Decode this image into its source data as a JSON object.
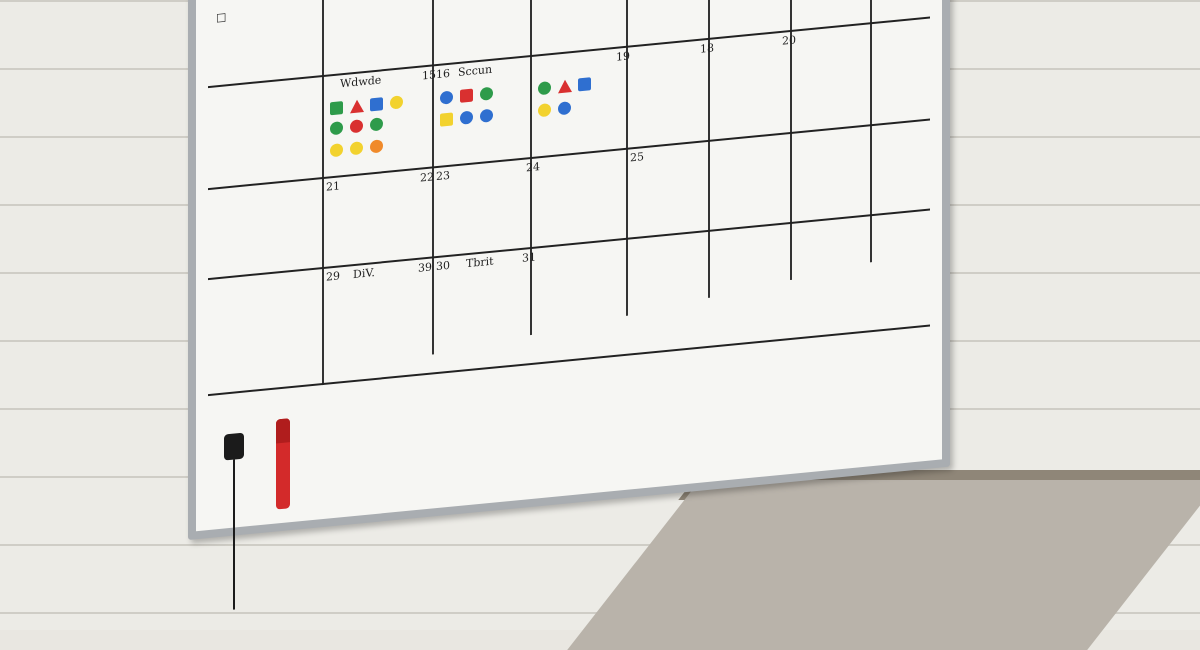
{
  "scene": {
    "subject": "whiteboard-calendar",
    "colors": {
      "wall": "#ecebe6",
      "board": "#f6f6f3",
      "frame": "#a9adb1",
      "red": "#d93030",
      "green": "#2e9b4a",
      "blue": "#2f6fd0",
      "yellow": "#f2d22e",
      "orange": "#f08a2a",
      "marker": "#d32a2a"
    }
  },
  "labels": {
    "sidebar_top": "□",
    "wed": "Wdwde",
    "d15": "15",
    "d16": "16",
    "mon": "Sccun",
    "d19": "19",
    "d18": "18",
    "d20": "20",
    "d21": "21",
    "d22": "22",
    "d23": "23",
    "d24": "24",
    "d25": "25",
    "d29": "29",
    "d30": "30",
    "d31": "31",
    "d39": "39",
    "div": "DiV.",
    "tbrt": "Tbrit"
  }
}
